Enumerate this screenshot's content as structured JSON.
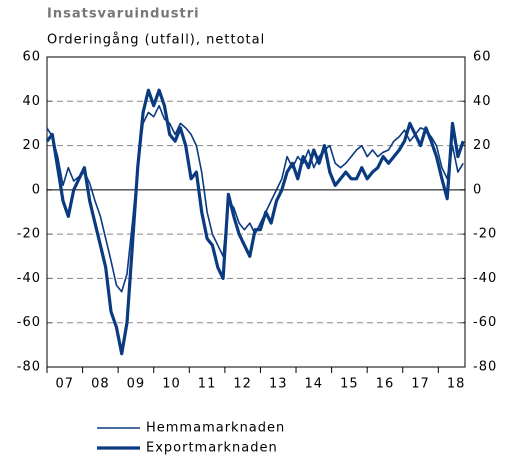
{
  "chart_data": {
    "type": "line",
    "title": "Insatsvaruindustri",
    "subtitle": "Orderingång (utfall), nettotal",
    "x": [
      2007.0,
      2007.15,
      2007.3,
      2007.45,
      2007.6,
      2007.75,
      2007.9,
      2008.05,
      2008.2,
      2008.35,
      2008.5,
      2008.65,
      2008.8,
      2008.95,
      2009.1,
      2009.25,
      2009.4,
      2009.55,
      2009.7,
      2009.85,
      2010.0,
      2010.15,
      2010.3,
      2010.45,
      2010.6,
      2010.75,
      2010.9,
      2011.05,
      2011.2,
      2011.35,
      2011.5,
      2011.65,
      2011.8,
      2011.95,
      2012.1,
      2012.25,
      2012.4,
      2012.55,
      2012.7,
      2012.85,
      2013.0,
      2013.15,
      2013.3,
      2013.45,
      2013.6,
      2013.75,
      2013.9,
      2014.05,
      2014.2,
      2014.35,
      2014.5,
      2014.65,
      2014.8,
      2014.95,
      2015.1,
      2015.25,
      2015.4,
      2015.55,
      2015.7,
      2015.85,
      2016.0,
      2016.15,
      2016.3,
      2016.45,
      2016.6,
      2016.75,
      2016.9,
      2017.05,
      2017.2,
      2017.35,
      2017.5,
      2017.65,
      2017.8,
      2017.95,
      2018.1,
      2018.25,
      2018.4,
      2018.55,
      2018.7
    ],
    "series": [
      {
        "name": "Hemmamarknaden",
        "color": "#0a3a80",
        "values": [
          28,
          24,
          15,
          2,
          10,
          4,
          6,
          8,
          3,
          -5,
          -12,
          -22,
          -32,
          -43,
          -46,
          -38,
          -15,
          10,
          30,
          35,
          33,
          38,
          32,
          30,
          25,
          30,
          28,
          25,
          20,
          8,
          -10,
          -20,
          -25,
          -30,
          -5,
          -8,
          -15,
          -18,
          -15,
          -20,
          -15,
          -10,
          -5,
          0,
          5,
          15,
          10,
          15,
          12,
          18,
          10,
          15,
          18,
          20,
          12,
          10,
          12,
          15,
          18,
          20,
          15,
          18,
          15,
          17,
          18,
          22,
          24,
          27,
          22,
          25,
          28,
          27,
          24,
          20,
          10,
          5,
          20,
          8,
          12
        ]
      },
      {
        "name": "Exportmarknaden",
        "color": "#0a3a80",
        "values": [
          22,
          25,
          10,
          -5,
          -12,
          0,
          5,
          10,
          -5,
          -15,
          -25,
          -35,
          -55,
          -62,
          -74,
          -60,
          -25,
          10,
          35,
          45,
          38,
          45,
          38,
          25,
          22,
          28,
          20,
          5,
          8,
          -10,
          -22,
          -25,
          -35,
          -40,
          -2,
          -12,
          -20,
          -25,
          -30,
          -18,
          -18,
          -10,
          -15,
          -5,
          0,
          8,
          12,
          5,
          15,
          10,
          18,
          12,
          20,
          8,
          2,
          5,
          8,
          5,
          5,
          10,
          5,
          8,
          10,
          15,
          12,
          15,
          18,
          22,
          30,
          25,
          20,
          28,
          22,
          15,
          5,
          -4,
          30,
          15,
          22
        ]
      }
    ],
    "xlim": [
      2007,
      2018.75
    ],
    "xticks": [
      {
        "value": 2007.5,
        "label": "07"
      },
      {
        "value": 2008.5,
        "label": "08"
      },
      {
        "value": 2009.5,
        "label": "09"
      },
      {
        "value": 2010.5,
        "label": "10"
      },
      {
        "value": 2011.5,
        "label": "11"
      },
      {
        "value": 2012.5,
        "label": "12"
      },
      {
        "value": 2013.5,
        "label": "13"
      },
      {
        "value": 2014.5,
        "label": "14"
      },
      {
        "value": 2015.5,
        "label": "15"
      },
      {
        "value": 2016.5,
        "label": "16"
      },
      {
        "value": 2017.5,
        "label": "17"
      },
      {
        "value": 2018.5,
        "label": "18"
      }
    ],
    "ylim": [
      -80,
      60
    ],
    "yticks": [
      -80,
      -60,
      -40,
      -20,
      0,
      20,
      40,
      60
    ],
    "grid": true
  }
}
